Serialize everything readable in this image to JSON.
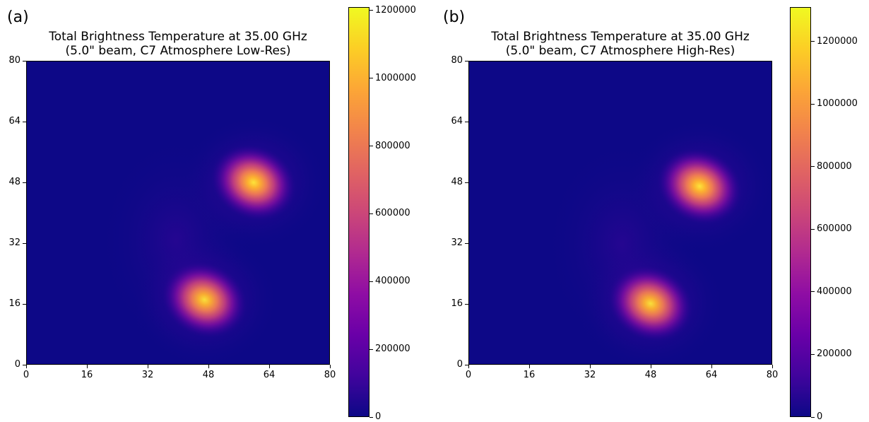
{
  "panels": [
    {
      "label": "(a)",
      "title_line1": "Total Brightness Temperature at 35.00 GHz",
      "title_line2": "(5.0\" beam, C7 Atmosphere Low-Res)",
      "colorbar_ticks": [
        "0",
        "200000",
        "400000",
        "600000",
        "800000",
        "1000000",
        "1200000"
      ]
    },
    {
      "label": "(b)",
      "title_line1": "Total Brightness Temperature at 35.00 GHz",
      "title_line2": "(5.0\" beam, C7 Atmosphere High-Res)",
      "colorbar_ticks": [
        "0",
        "200000",
        "400000",
        "600000",
        "800000",
        "1000000",
        "1200000"
      ]
    }
  ],
  "chart_data": [
    {
      "type": "heatmap",
      "title": "Total Brightness Temperature at 35.00 GHz (5.0\" beam, C7 Atmosphere Low-Res)",
      "colormap": "plasma",
      "x_ticks": [
        0,
        16,
        32,
        48,
        64,
        80
      ],
      "y_ticks": [
        0,
        16,
        32,
        48,
        64,
        80
      ],
      "xlim": [
        0,
        80
      ],
      "ylim": [
        0,
        80
      ],
      "colorbar_range": [
        0,
        1210000
      ],
      "peaks": [
        {
          "x": 60,
          "y": 48,
          "value": 1200000
        },
        {
          "x": 47,
          "y": 17,
          "value": 1080000
        }
      ]
    },
    {
      "type": "heatmap",
      "title": "Total Brightness Temperature at 35.00 GHz (5.0\" beam, C7 Atmosphere High-Res)",
      "colormap": "plasma",
      "x_ticks": [
        0,
        16,
        32,
        48,
        64,
        80
      ],
      "y_ticks": [
        0,
        16,
        32,
        48,
        64,
        80
      ],
      "xlim": [
        0,
        80
      ],
      "ylim": [
        0,
        80
      ],
      "colorbar_range": [
        0,
        1310000
      ],
      "peaks": [
        {
          "x": 61,
          "y": 47,
          "value": 1300000
        },
        {
          "x": 48,
          "y": 16,
          "value": 1150000
        }
      ]
    }
  ]
}
